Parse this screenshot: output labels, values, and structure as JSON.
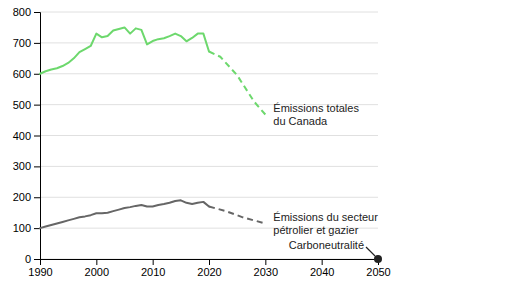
{
  "chart_data": {
    "type": "line",
    "series": [
      {
        "x": [
          1990,
          1991,
          1992,
          1993,
          1994,
          1995,
          1996,
          1997,
          1998,
          1999,
          2000,
          2001,
          2002,
          2003,
          2004,
          2005,
          2006,
          2007,
          2008,
          2009,
          2010,
          2011,
          2012,
          2013,
          2014,
          2015,
          2016,
          2017,
          2018,
          2019,
          2020
        ],
        "values": [
          600,
          608,
          614,
          618,
          625,
          635,
          650,
          670,
          680,
          690,
          730,
          718,
          722,
          740,
          745,
          750,
          730,
          747,
          742,
          695,
          706,
          712,
          715,
          722,
          730,
          722,
          705,
          716,
          730,
          730,
          672
        ],
        "color": "#6dd86d",
        "line_style": "solid"
      },
      {
        "x": [
          2020,
          2022,
          2025,
          2028,
          2030
        ],
        "values": [
          672,
          655,
          595,
          510,
          468
        ],
        "color": "#6dd86d",
        "line_style": "dashed"
      },
      {
        "x": [
          1990,
          1991,
          1992,
          1993,
          1994,
          1995,
          1996,
          1997,
          1998,
          1999,
          2000,
          2001,
          2002,
          2003,
          2004,
          2005,
          2006,
          2007,
          2008,
          2009,
          2010,
          2011,
          2012,
          2013,
          2014,
          2015,
          2016,
          2017,
          2018,
          2019,
          2020
        ],
        "values": [
          100,
          105,
          110,
          115,
          120,
          125,
          130,
          135,
          138,
          142,
          148,
          148,
          150,
          155,
          160,
          165,
          168,
          172,
          175,
          170,
          170,
          175,
          178,
          182,
          188,
          190,
          182,
          178,
          182,
          185,
          170
        ],
        "color": "#666666",
        "line_style": "solid"
      },
      {
        "x": [
          2020,
          2023,
          2026,
          2030
        ],
        "values": [
          170,
          155,
          135,
          115
        ],
        "color": "#666666",
        "line_style": "dashed"
      },
      {
        "type": "scatter",
        "x": [
          2050
        ],
        "values": [
          0
        ],
        "color": "#222222",
        "marker": "circle"
      }
    ],
    "annotations": [
      "Émissions totales\ndu Canada",
      "Émissions du secteur\npétrolier et gazier",
      "Carboneutralité"
    ],
    "xlim": [
      1990,
      2050
    ],
    "ylim": [
      0,
      800
    ],
    "xticks": [
      1990,
      2000,
      2010,
      2020,
      2030,
      2040,
      2050
    ],
    "yticks": [
      0,
      100,
      200,
      300,
      400,
      500,
      600,
      700,
      800
    ],
    "grid": true
  }
}
